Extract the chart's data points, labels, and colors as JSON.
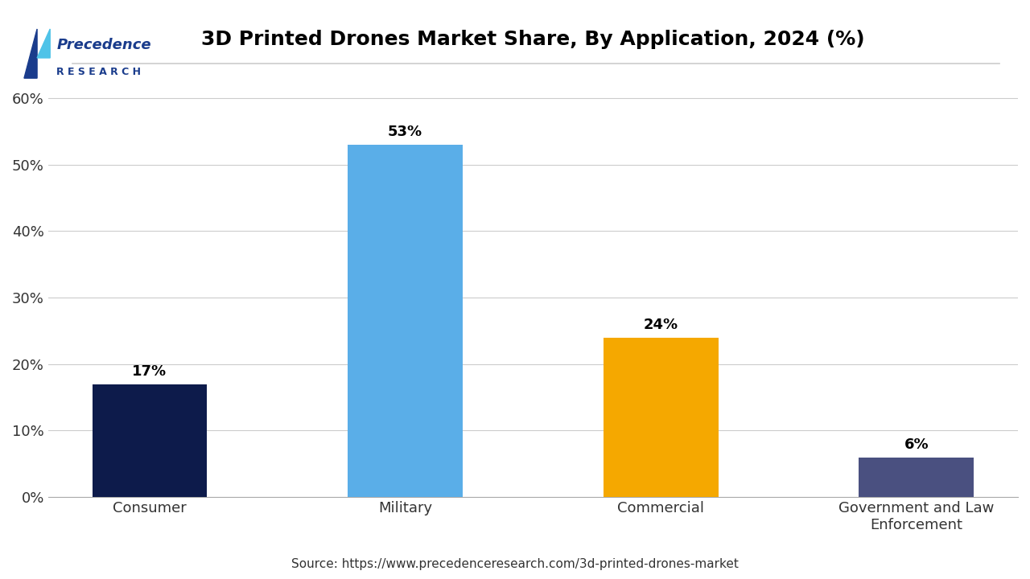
{
  "title": "3D Printed Drones Market Share, By Application, 2024 (%)",
  "categories": [
    "Consumer",
    "Military",
    "Commercial",
    "Government and Law\nEnforcement"
  ],
  "values": [
    17,
    53,
    24,
    6
  ],
  "bar_colors": [
    "#0d1b4b",
    "#5aaee8",
    "#f5a800",
    "#4a5080"
  ],
  "label_texts": [
    "17%",
    "53%",
    "24%",
    "6%"
  ],
  "ylim": [
    0,
    65
  ],
  "yticks": [
    0,
    10,
    20,
    30,
    40,
    50,
    60
  ],
  "ytick_labels": [
    "0%",
    "10%",
    "20%",
    "30%",
    "40%",
    "50%",
    "60%"
  ],
  "source_text": "Source: https://www.precedenceresearch.com/3d-printed-drones-market",
  "background_color": "#ffffff",
  "grid_color": "#cccccc",
  "title_color": "#000000",
  "title_fontsize": 18,
  "label_fontsize": 13,
  "tick_fontsize": 13,
  "source_fontsize": 11,
  "bar_width": 0.45,
  "logo_text1": "Precedence",
  "logo_text2": "R E S E A R C H",
  "logo_color": "#1a3c8c",
  "logo_icon_color1": "#1a3c8c",
  "logo_icon_color2": "#4fc3e8"
}
